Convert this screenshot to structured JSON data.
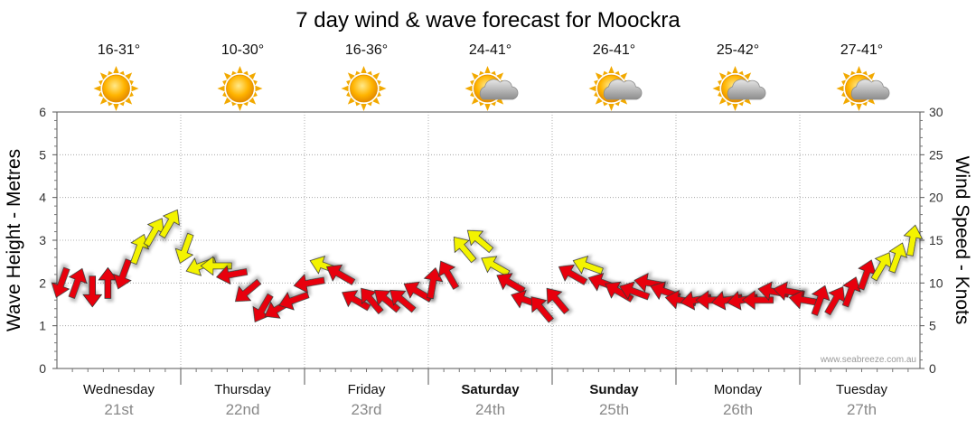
{
  "chart_data": {
    "type": "line",
    "title": "7 day wind & wave forecast for Moockra",
    "ylabel_left": "Wave Height - Metres",
    "ylabel_right": "Wind Speed - Knots",
    "ylim_left": [
      0,
      6
    ],
    "ylim_right": [
      0,
      30
    ],
    "yticks_left": [
      "0",
      "1",
      "2",
      "3",
      "4",
      "5",
      "6"
    ],
    "yticks_right": [
      "0",
      "5",
      "10",
      "15",
      "20",
      "25",
      "30"
    ],
    "watermark": "www.seabreeze.com.au",
    "days": [
      {
        "day": "Wednesday",
        "date": "21st",
        "temp": "16-31°",
        "icon": "sun-icon",
        "bold": false
      },
      {
        "day": "Thursday",
        "date": "22nd",
        "temp": "10-30°",
        "icon": "sun-icon",
        "bold": false
      },
      {
        "day": "Friday",
        "date": "23rd",
        "temp": "16-36°",
        "icon": "sun-icon",
        "bold": false
      },
      {
        "day": "Saturday",
        "date": "24th",
        "temp": "24-41°",
        "icon": "sun-cloud-icon",
        "bold": true
      },
      {
        "day": "Sunday",
        "date": "25th",
        "temp": "26-41°",
        "icon": "sun-cloud-icon",
        "bold": true
      },
      {
        "day": "Monday",
        "date": "26th",
        "temp": "25-42°",
        "icon": "sun-cloud-icon",
        "bold": false
      },
      {
        "day": "Tuesday",
        "date": "27th",
        "temp": "27-41°",
        "icon": "sun-cloud-icon",
        "bold": false
      }
    ],
    "series": [
      {
        "name": "Wind Speed (knots)",
        "axis": "right",
        "day_offsets": [
          0,
          0.125,
          0.25,
          0.375,
          0.5,
          0.625,
          0.75,
          0.875,
          1,
          1.125,
          1.25,
          1.375,
          1.5,
          1.625,
          1.75,
          1.875,
          2,
          2.125,
          2.25,
          2.375,
          2.5,
          2.625,
          2.75,
          2.875,
          3,
          3.125,
          3.25,
          3.375,
          3.5,
          3.625,
          3.75,
          3.875,
          4,
          4.125,
          4.25,
          4.375,
          4.5,
          4.625,
          4.75,
          4.875,
          5,
          5.125,
          5.25,
          5.375,
          5.5,
          5.625,
          5.75,
          5.875,
          6,
          6.125,
          6.25,
          6.375,
          6.5,
          6.625,
          6.75,
          6.875
        ],
        "values": [
          10,
          10,
          9,
          10,
          11,
          14,
          16,
          17,
          14,
          12,
          12,
          11,
          9,
          7,
          7,
          8,
          10,
          12,
          11,
          8,
          8,
          8,
          8,
          9,
          10,
          11,
          14,
          15,
          12,
          10,
          8,
          7,
          8,
          11,
          12,
          10,
          9,
          9,
          10,
          9,
          8,
          8,
          8,
          8,
          8,
          8,
          9,
          9,
          8,
          8,
          8,
          9,
          11,
          12,
          13,
          15
        ],
        "directions_deg": [
          200,
          20,
          180,
          0,
          200,
          20,
          30,
          30,
          200,
          250,
          270,
          260,
          230,
          210,
          240,
          250,
          260,
          290,
          300,
          300,
          320,
          310,
          310,
          300,
          10,
          330,
          320,
          310,
          300,
          300,
          290,
          320,
          320,
          300,
          290,
          290,
          300,
          290,
          280,
          290,
          280,
          260,
          270,
          260,
          260,
          270,
          280,
          280,
          280,
          20,
          30,
          20,
          20,
          30,
          20,
          10
        ]
      }
    ],
    "arrow_color_scale": [
      {
        "max_knots": 11.5,
        "color": "#e8000b"
      },
      {
        "max_knots": 99,
        "color": "#f3f300"
      }
    ]
  }
}
